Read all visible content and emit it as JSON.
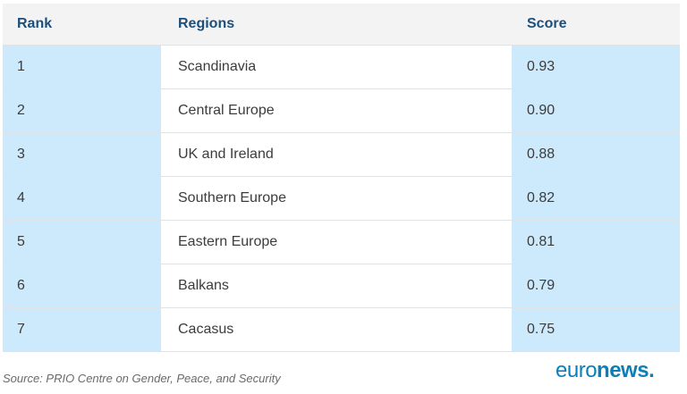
{
  "table": {
    "headers": {
      "rank": "Rank",
      "region": "Regions",
      "score": "Score"
    },
    "rows": [
      {
        "rank": "1",
        "region": "Scandinavia",
        "score": "0.93"
      },
      {
        "rank": "2",
        "region": "Central Europe",
        "score": "0.90"
      },
      {
        "rank": "3",
        "region": "UK and Ireland",
        "score": "0.88"
      },
      {
        "rank": "4",
        "region": "Southern Europe",
        "score": "0.82"
      },
      {
        "rank": "5",
        "region": "Eastern Europe",
        "score": "0.81"
      },
      {
        "rank": "6",
        "region": "Balkans",
        "score": "0.79"
      },
      {
        "rank": "7",
        "region": "Cacasus",
        "score": "0.75"
      }
    ]
  },
  "footer": {
    "source": "Source: PRIO Centre on Gender, Peace, and Security",
    "logo_light": "euro",
    "logo_bold": "news",
    "logo_dot": "."
  },
  "colors": {
    "header_text": "#1d4f7c",
    "highlight_column": "#cceafb",
    "logo": "#0c7fb8"
  }
}
